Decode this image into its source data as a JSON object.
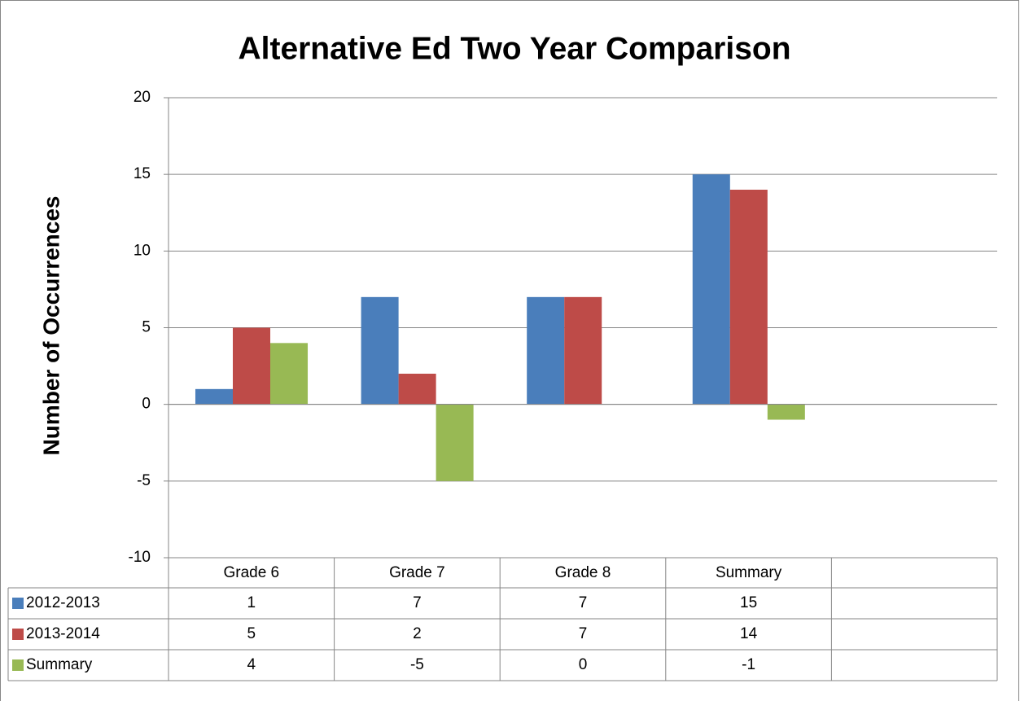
{
  "chart_data": {
    "type": "bar",
    "title": "Alternative Ed Two Year Comparison",
    "y_axis_label": "Number of Occurrences",
    "categories": [
      "Grade 6",
      "Grade 7",
      "Grade 8",
      "Summary",
      null
    ],
    "series": [
      {
        "name": "2012-2013",
        "color": "#4a7ebb",
        "values": [
          1,
          7,
          7,
          15,
          null
        ]
      },
      {
        "name": "2013-2014",
        "color": "#be4b48",
        "values": [
          5,
          2,
          7,
          14,
          null
        ]
      },
      {
        "name": "Summary",
        "color": "#98b954",
        "values": [
          4,
          -5,
          0,
          -1,
          null
        ]
      }
    ],
    "ylim": [
      -10,
      20
    ],
    "yticks": [
      -10,
      -5,
      0,
      5,
      10,
      15,
      20
    ],
    "grid": true,
    "data_table": true
  }
}
